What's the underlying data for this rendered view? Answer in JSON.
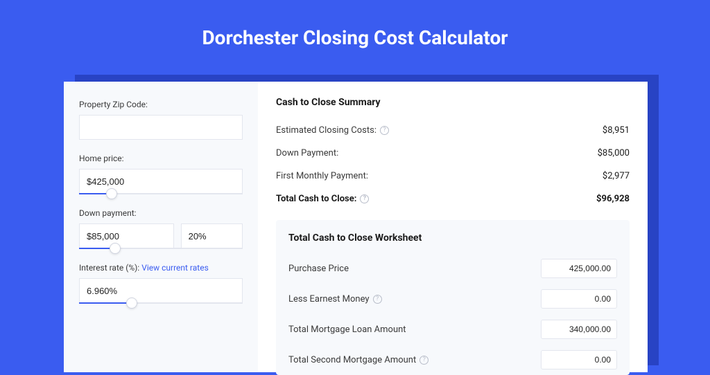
{
  "colors": {
    "page_bg": "#3a5cf0",
    "card_bg": "#ffffff",
    "panel_bg": "#f7f9fc",
    "shadow_bg": "#2843c4",
    "text_primary": "#1a1a1a",
    "text_secondary": "#3a3a3a",
    "link": "#3a5cf0",
    "border": "#e3e6ee",
    "help_icon": "#b8bdc9"
  },
  "page": {
    "title": "Dorchester Closing Cost Calculator"
  },
  "form": {
    "zip": {
      "label": "Property Zip Code:",
      "value": ""
    },
    "home_price": {
      "label": "Home price:",
      "value": "$425,000",
      "slider_pct": 20
    },
    "down_payment": {
      "label": "Down payment:",
      "value": "$85,000",
      "pct_value": "20%",
      "slider_pct": 22
    },
    "interest_rate": {
      "label_prefix": "Interest rate (%): ",
      "link_text": "View current rates",
      "value": "6.960%",
      "slider_pct": 32
    }
  },
  "summary": {
    "title": "Cash to Close Summary",
    "rows": [
      {
        "label": "Estimated Closing Costs:",
        "help": true,
        "value": "$8,951",
        "bold": false
      },
      {
        "label": "Down Payment:",
        "help": false,
        "value": "$85,000",
        "bold": false
      },
      {
        "label": "First Monthly Payment:",
        "help": false,
        "value": "$2,977",
        "bold": false
      },
      {
        "label": "Total Cash to Close:",
        "help": true,
        "value": "$96,928",
        "bold": true
      }
    ]
  },
  "worksheet": {
    "title": "Total Cash to Close Worksheet",
    "rows": [
      {
        "label": "Purchase Price",
        "help": false,
        "value": "425,000.00"
      },
      {
        "label": "Less Earnest Money",
        "help": true,
        "value": "0.00"
      },
      {
        "label": "Total Mortgage Loan Amount",
        "help": false,
        "value": "340,000.00"
      },
      {
        "label": "Total Second Mortgage Amount",
        "help": true,
        "value": "0.00"
      }
    ]
  }
}
